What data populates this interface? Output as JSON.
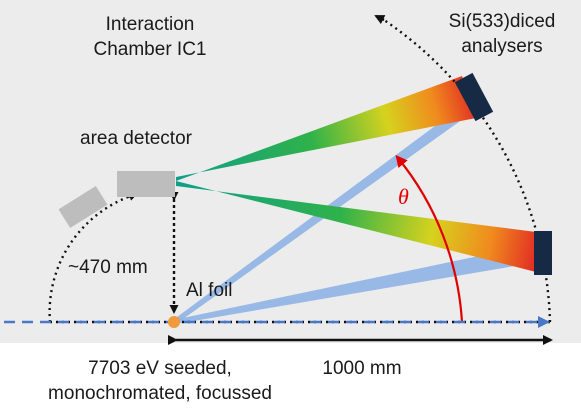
{
  "labels": {
    "chamber_line1": "Interaction",
    "chamber_line2": "Chamber IC1",
    "analysers_line1": "Si(533)diced",
    "analysers_line2": "analysers",
    "area_detector": "area detector",
    "height": "~470 mm",
    "foil": "Al foil",
    "theta": "θ",
    "distance": "1000 mm",
    "beam_line1": "7703 eV seeded,",
    "beam_line2": "monochromated, focussed"
  },
  "colors": {
    "chamber_bg": "#ececec",
    "beam": "#4a78c8",
    "scatter_band": "#8fb4e6",
    "analyser": "#172a45",
    "detector": "#bdbdbd",
    "angle_arc": "#e00000",
    "sample": "#f29a3a"
  }
}
